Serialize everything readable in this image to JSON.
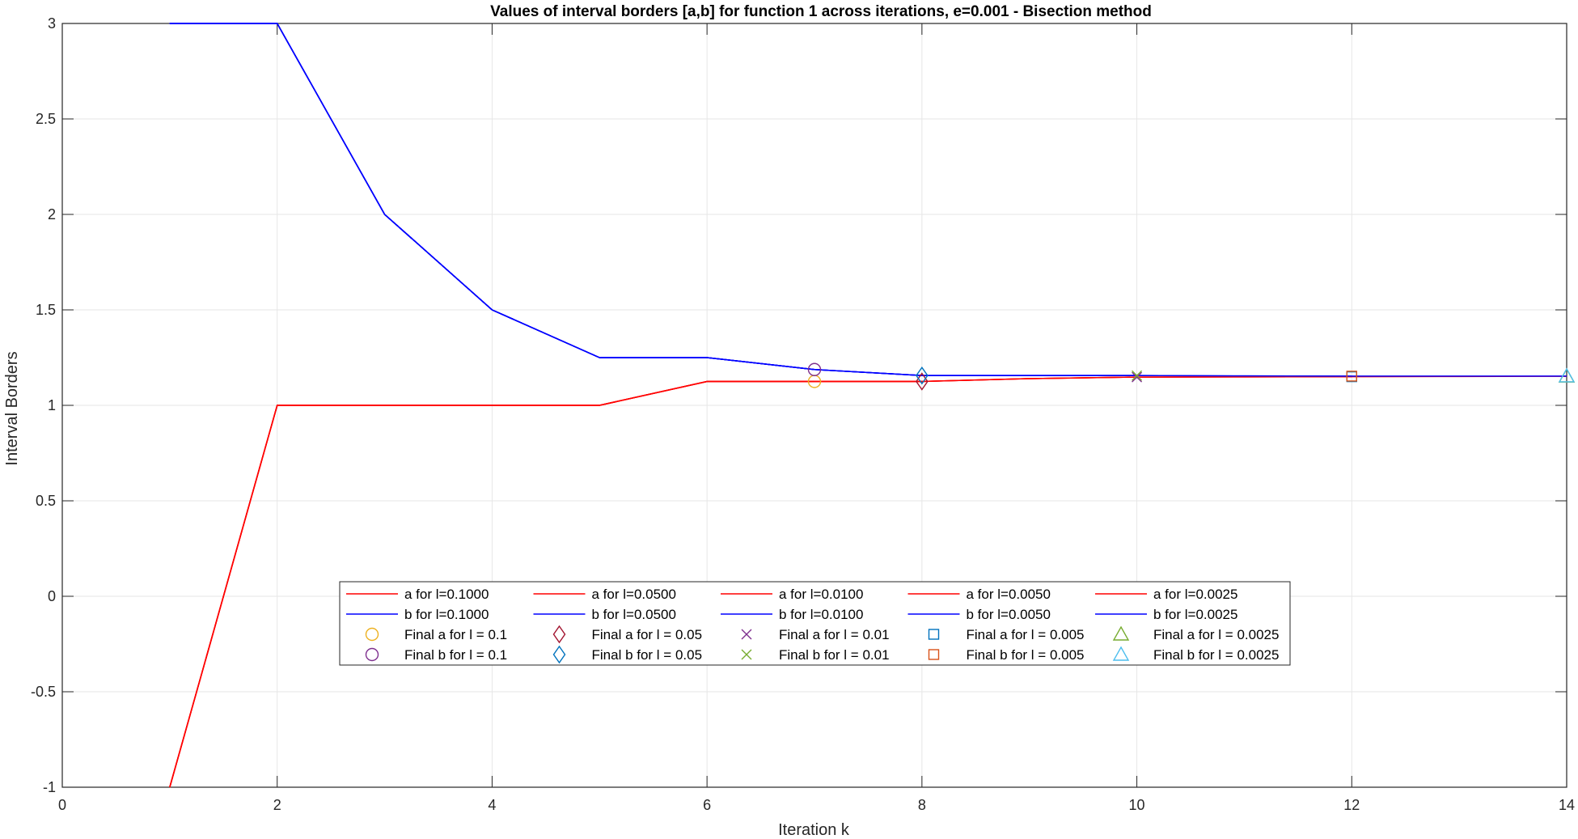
{
  "chart_data": {
    "type": "line",
    "title": "Values of interval borders [a,b] for function 1 across iterations, e=0.001 - Bisection method",
    "xlabel": "Iteration k",
    "ylabel": "Interval Borders",
    "xlim": [
      0,
      14
    ],
    "ylim": [
      -1,
      3
    ],
    "xticks": [
      0,
      2,
      4,
      6,
      8,
      10,
      12,
      14
    ],
    "yticks": [
      -1,
      -0.5,
      0,
      0.5,
      1,
      1.5,
      2,
      2.5,
      3
    ],
    "grid": true,
    "colors": {
      "a": "#ff0000",
      "b": "#0000ff"
    },
    "series": [
      {
        "name": "a for l=0.1000",
        "color": "#ff0000",
        "x": [
          1,
          2,
          3,
          4,
          5,
          6,
          7
        ],
        "y": [
          -1,
          1,
          1,
          1,
          1,
          1.125,
          1.125
        ]
      },
      {
        "name": "b for l=0.1000",
        "color": "#0000ff",
        "x": [
          1,
          2,
          3,
          4,
          5,
          6,
          7
        ],
        "y": [
          3,
          3,
          2,
          1.5,
          1.25,
          1.25,
          1.1875
        ]
      },
      {
        "name": "a for l=0.0500",
        "color": "#ff0000",
        "x": [
          1,
          2,
          3,
          4,
          5,
          6,
          7,
          8
        ],
        "y": [
          -1,
          1,
          1,
          1,
          1,
          1.125,
          1.125,
          1.125
        ]
      },
      {
        "name": "b for l=0.0500",
        "color": "#0000ff",
        "x": [
          1,
          2,
          3,
          4,
          5,
          6,
          7,
          8
        ],
        "y": [
          3,
          3,
          2,
          1.5,
          1.25,
          1.25,
          1.1875,
          1.156
        ]
      },
      {
        "name": "a for l=0.0100",
        "color": "#ff0000",
        "x": [
          1,
          2,
          3,
          4,
          5,
          6,
          7,
          8,
          9,
          10
        ],
        "y": [
          -1,
          1,
          1,
          1,
          1,
          1.125,
          1.125,
          1.125,
          1.14,
          1.148
        ]
      },
      {
        "name": "b for l=0.0050",
        "color": "#0000ff",
        "x": [
          1,
          2,
          3,
          4,
          5,
          6,
          7,
          8,
          9,
          10,
          11,
          12
        ],
        "y": [
          3,
          3,
          2,
          1.5,
          1.25,
          1.25,
          1.1875,
          1.156,
          1.156,
          1.156,
          1.154,
          1.153
        ]
      },
      {
        "name": "a for l=0.0050",
        "color": "#ff0000",
        "x": [
          1,
          2,
          3,
          4,
          5,
          6,
          7,
          8,
          9,
          10,
          11,
          12
        ],
        "y": [
          -1,
          1,
          1,
          1,
          1,
          1.125,
          1.125,
          1.125,
          1.14,
          1.148,
          1.149,
          1.15
        ]
      },
      {
        "name": "b for l=0.0100",
        "color": "#0000ff",
        "x": [
          1,
          2,
          3,
          4,
          5,
          6,
          7,
          8,
          9,
          10
        ],
        "y": [
          3,
          3,
          2,
          1.5,
          1.25,
          1.25,
          1.1875,
          1.156,
          1.156,
          1.156
        ]
      },
      {
        "name": "a for l=0.0025",
        "color": "#ff0000",
        "x": [
          1,
          2,
          3,
          4,
          5,
          6,
          7,
          8,
          9,
          10,
          11,
          12,
          13,
          14
        ],
        "y": [
          -1,
          1,
          1,
          1,
          1,
          1.125,
          1.125,
          1.125,
          1.14,
          1.148,
          1.149,
          1.15,
          1.151,
          1.152
        ]
      },
      {
        "name": "b for l=0.0025",
        "color": "#0000ff",
        "x": [
          1,
          2,
          3,
          4,
          5,
          6,
          7,
          8,
          9,
          10,
          11,
          12,
          13,
          14
        ],
        "y": [
          3,
          3,
          2,
          1.5,
          1.25,
          1.25,
          1.1875,
          1.156,
          1.156,
          1.156,
          1.154,
          1.153,
          1.153,
          1.153
        ]
      }
    ],
    "markers": [
      {
        "name": "Final a for l = 0.1",
        "symbol": "circle",
        "color": "#EDB120",
        "x": 7,
        "y": 1.125
      },
      {
        "name": "Final b for l = 0.1",
        "symbol": "circle",
        "color": "#7E2F8E",
        "x": 7,
        "y": 1.1875
      },
      {
        "name": "Final a for l = 0.05",
        "symbol": "diamond",
        "color": "#A2142F",
        "x": 8,
        "y": 1.125
      },
      {
        "name": "Final b for l = 0.05",
        "symbol": "diamond",
        "color": "#0072BD",
        "x": 8,
        "y": 1.156
      },
      {
        "name": "Final a for l = 0.01",
        "symbol": "x",
        "color": "#7E2F8E",
        "x": 10,
        "y": 1.148
      },
      {
        "name": "Final b for l = 0.01",
        "symbol": "x",
        "color": "#77AC30",
        "x": 10,
        "y": 1.156
      },
      {
        "name": "Final a for l = 0.005",
        "symbol": "square",
        "color": "#0072BD",
        "x": 12,
        "y": 1.15
      },
      {
        "name": "Final b for l = 0.005",
        "symbol": "square",
        "color": "#D95319",
        "x": 12,
        "y": 1.153
      },
      {
        "name": "Final a for l = 0.0025",
        "symbol": "triangle",
        "color": "#77AC30",
        "x": 14,
        "y": 1.152
      },
      {
        "name": "Final b for l = 0.0025",
        "symbol": "triangle",
        "color": "#4DBEEE",
        "x": 14,
        "y": 1.153
      }
    ],
    "legend": {
      "placement": "lower-center",
      "columns": [
        [
          "a for l=0.1000",
          "b for l=0.1000",
          "Final a for l = 0.1",
          "Final b for l = 0.1"
        ],
        [
          "a for l=0.0500",
          "b for l=0.0500",
          "Final a for l = 0.05",
          "Final b for l = 0.05"
        ],
        [
          "a for l=0.0100",
          "b for l=0.0100",
          "Final a for l = 0.01",
          "Final b for l = 0.01"
        ],
        [
          "a for l=0.0050",
          "b for l=0.0050",
          "Final a for l = 0.005",
          "Final b for l = 0.005"
        ],
        [
          "a for l=0.0025",
          "b for l=0.0025",
          "Final a for l = 0.0025",
          "Final b for l = 0.0025"
        ]
      ]
    }
  }
}
